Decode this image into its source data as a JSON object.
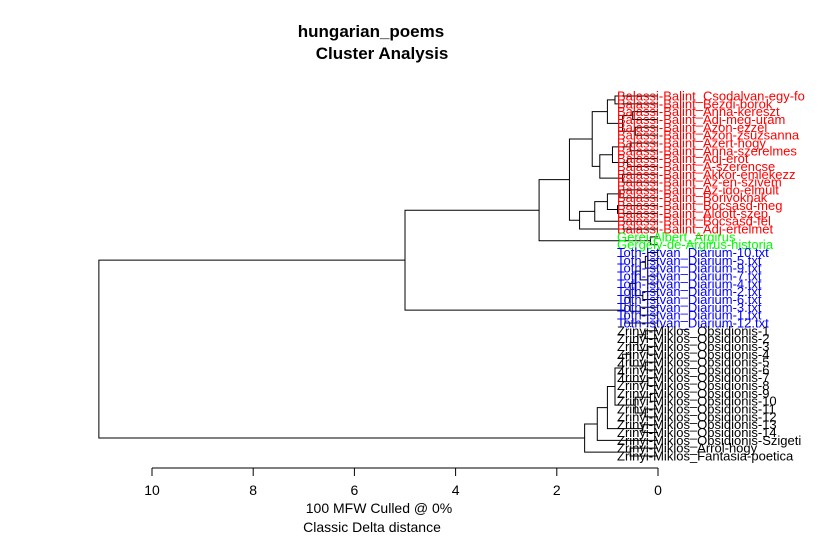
{
  "chart_data": {
    "type": "dendrogram",
    "title": "hungarian_poems",
    "subtitle": "Cluster Analysis",
    "xlabel_line1": "100 MFW  Culled @ 0%",
    "xlabel_line2": "Classic Delta distance",
    "x_ticks": [
      10,
      8,
      6,
      4,
      2,
      0
    ],
    "x_tick_labels": [
      "10",
      "8",
      "6",
      "4",
      "2",
      "0"
    ],
    "xlim": [
      11.05,
      0
    ],
    "group_colors": {
      "Balassi": "#ff0000",
      "Gerei": "#00ff00",
      "Toth": "#0000ff",
      "Zrinyi": "#000000"
    },
    "leaves": [
      {
        "label": "Balassi-Balint_Csodalvan-egy-fo",
        "group": "Balassi"
      },
      {
        "label": "Balassi-Balint_Bezdi-borok",
        "group": "Balassi"
      },
      {
        "label": "Balassi-Balint_Anna-kereszt",
        "group": "Balassi"
      },
      {
        "label": "Balassi-Balint_Adj-meg-uram",
        "group": "Balassi"
      },
      {
        "label": "Balassi-Balint_Azon-ezzel",
        "group": "Balassi"
      },
      {
        "label": "Balassi-Balint_Azon-zsuzsanna",
        "group": "Balassi"
      },
      {
        "label": "Balassi-Balint_Azert-hogy",
        "group": "Balassi"
      },
      {
        "label": "Balassi-Balint_Anna-szerelmes",
        "group": "Balassi"
      },
      {
        "label": "Balassi-Balint_Adj-erot",
        "group": "Balassi"
      },
      {
        "label": "Balassi-Balint_A-szerencse",
        "group": "Balassi"
      },
      {
        "label": "Balassi-Balint_Akkor-emlekezz",
        "group": "Balassi"
      },
      {
        "label": "Balassi-Balint_Az-en-szivem",
        "group": "Balassi"
      },
      {
        "label": "Balassi-Balint_Az-ido-elmult",
        "group": "Balassi"
      },
      {
        "label": "Balassi-Balint_Borivoknak",
        "group": "Balassi"
      },
      {
        "label": "Balassi-Balint_Bocsasd-meg",
        "group": "Balassi"
      },
      {
        "label": "Balassi-Balint_Aldott-szep",
        "group": "Balassi"
      },
      {
        "label": "Balassi-Balint_Bocsasd-fel",
        "group": "Balassi"
      },
      {
        "label": "Balassi-Balint_Adj-ertelmet",
        "group": "Balassi"
      },
      {
        "label": "Gerei-Albert_Argirus",
        "group": "Gerei"
      },
      {
        "label": "Gergely-de-Argirus-historia",
        "group": "Gerei"
      },
      {
        "label": "Toth-Istvan_Diarium-10.txt",
        "group": "Toth"
      },
      {
        "label": "Toth-Istvan_Diarium-5.txt",
        "group": "Toth"
      },
      {
        "label": "Toth-Istvan_Diarium-9.txt",
        "group": "Toth"
      },
      {
        "label": "Toth-Istvan_Diarium-7.txt",
        "group": "Toth"
      },
      {
        "label": "Toth-Istvan_Diarium-4.txt",
        "group": "Toth"
      },
      {
        "label": "Toth-Istvan_Diarium-2.txt",
        "group": "Toth"
      },
      {
        "label": "Toth-Istvan_Diarium-6.txt",
        "group": "Toth"
      },
      {
        "label": "Toth-Istvan_Diarium-3.txt",
        "group": "Toth"
      },
      {
        "label": "Toth-Istvan_Diarium-1.txt",
        "group": "Toth"
      },
      {
        "label": "Toth-Istvan_Diarium-12.txt",
        "group": "Toth"
      },
      {
        "label": "Zrinyi-Miklos_Obsidionis-1",
        "group": "Zrinyi"
      },
      {
        "label": "Zrinyi-Miklos_Obsidionis-2",
        "group": "Zrinyi"
      },
      {
        "label": "Zrinyi-Miklos_Obsidionis-3",
        "group": "Zrinyi"
      },
      {
        "label": "Zrinyi-Miklos_Obsidionis-4",
        "group": "Zrinyi"
      },
      {
        "label": "Zrinyi-Miklos_Obsidionis-5",
        "group": "Zrinyi"
      },
      {
        "label": "Zrinyi-Miklos_Obsidionis-6",
        "group": "Zrinyi"
      },
      {
        "label": "Zrinyi-Miklos_Obsidionis-7",
        "group": "Zrinyi"
      },
      {
        "label": "Zrinyi-Miklos_Obsidionis-8",
        "group": "Zrinyi"
      },
      {
        "label": "Zrinyi-Miklos_Obsidionis-9",
        "group": "Zrinyi"
      },
      {
        "label": "Zrinyi-Miklos_Obsidionis-10",
        "group": "Zrinyi"
      },
      {
        "label": "Zrinyi-Miklos_Obsidionis-11",
        "group": "Zrinyi"
      },
      {
        "label": "Zrinyi-Miklos_Obsidionis-12",
        "group": "Zrinyi"
      },
      {
        "label": "Zrinyi-Miklos_Obsidionis-13",
        "group": "Zrinyi"
      },
      {
        "label": "Zrinyi-Miklos_Obsidionis-14",
        "group": "Zrinyi"
      },
      {
        "label": "Zrinyi-Miklos_Obsidionis-Szigeti",
        "group": "Zrinyi"
      },
      {
        "label": "Zrinyi-Miklos_Arrol-hogy",
        "group": "Zrinyi"
      },
      {
        "label": "Zrinyi-Miklos_Fantasia-poetica",
        "group": "Zrinyi"
      }
    ],
    "merges": [
      {
        "a": {
          "leaf": 0
        },
        "b": {
          "leaf": 1
        },
        "height": 0.85
      },
      {
        "a": {
          "leaf": 2
        },
        "b": {
          "leaf": 3
        },
        "height": 0.5
      },
      {
        "a": {
          "leaf": 4
        },
        "b": {
          "leaf": 5
        },
        "height": 0.45
      },
      {
        "a": {
          "node": 1
        },
        "b": {
          "node": 2
        },
        "height": 0.7
      },
      {
        "a": {
          "node": 0
        },
        "b": {
          "node": 3
        },
        "height": 1.0
      },
      {
        "a": {
          "leaf": 6
        },
        "b": {
          "leaf": 7
        },
        "height": 0.55
      },
      {
        "a": {
          "leaf": 8
        },
        "b": {
          "leaf": 9
        },
        "height": 0.6
      },
      {
        "a": {
          "node": 5
        },
        "b": {
          "node": 6
        },
        "height": 0.9
      },
      {
        "a": {
          "leaf": 10
        },
        "b": {
          "leaf": 11
        },
        "height": 0.7
      },
      {
        "a": {
          "node": 7
        },
        "b": {
          "node": 8
        },
        "height": 1.15
      },
      {
        "a": {
          "node": 4
        },
        "b": {
          "node": 9
        },
        "height": 1.3
      },
      {
        "a": {
          "leaf": 12
        },
        "b": {
          "leaf": 13
        },
        "height": 0.75
      },
      {
        "a": {
          "leaf": 14
        },
        "b": {
          "leaf": 15
        },
        "height": 0.8
      },
      {
        "a": {
          "node": 11
        },
        "b": {
          "node": 12
        },
        "height": 1.0
      },
      {
        "a": {
          "node": 13
        },
        "b": {
          "leaf": 16
        },
        "height": 1.25
      },
      {
        "a": {
          "node": 14
        },
        "b": {
          "leaf": 17
        },
        "height": 1.55
      },
      {
        "a": {
          "node": 10
        },
        "b": {
          "node": 15
        },
        "height": 1.75
      },
      {
        "a": {
          "leaf": 18
        },
        "b": {
          "leaf": 19
        },
        "height": 0.15
      },
      {
        "a": {
          "node": 16
        },
        "b": {
          "node": 17
        },
        "height": 2.35
      },
      {
        "a": {
          "leaf": 20
        },
        "b": {
          "leaf": 21
        },
        "height": 0.2
      },
      {
        "a": {
          "node": 19
        },
        "b": {
          "leaf": 22
        },
        "height": 0.25
      },
      {
        "a": {
          "leaf": 23
        },
        "b": {
          "leaf": 24
        },
        "height": 0.2
      },
      {
        "a": {
          "node": 20
        },
        "b": {
          "node": 21
        },
        "height": 0.35
      },
      {
        "a": {
          "leaf": 25
        },
        "b": {
          "leaf": 26
        },
        "height": 0.3
      },
      {
        "a": {
          "node": 22
        },
        "b": {
          "node": 23
        },
        "height": 0.45
      },
      {
        "a": {
          "leaf": 27
        },
        "b": {
          "leaf": 28
        },
        "height": 0.35
      },
      {
        "a": {
          "node": 24
        },
        "b": {
          "node": 25
        },
        "height": 0.55
      },
      {
        "a": {
          "node": 26
        },
        "b": {
          "leaf": 29
        },
        "height": 0.65
      },
      {
        "a": {
          "node": 18
        },
        "b": {
          "node": 27
        },
        "height": 5.0
      },
      {
        "a": {
          "leaf": 30
        },
        "b": {
          "leaf": 31
        },
        "height": 0.25
      },
      {
        "a": {
          "leaf": 32
        },
        "b": {
          "leaf": 33
        },
        "height": 0.2
      },
      {
        "a": {
          "node": 29
        },
        "b": {
          "node": 30
        },
        "height": 0.4
      },
      {
        "a": {
          "leaf": 34
        },
        "b": {
          "leaf": 35
        },
        "height": 0.25
      },
      {
        "a": {
          "node": 31
        },
        "b": {
          "node": 32
        },
        "height": 0.55
      },
      {
        "a": {
          "leaf": 36
        },
        "b": {
          "leaf": 37
        },
        "height": 0.2
      },
      {
        "a": {
          "node": 33
        },
        "b": {
          "node": 34
        },
        "height": 0.7
      },
      {
        "a": {
          "leaf": 38
        },
        "b": {
          "leaf": 39
        },
        "height": 0.15
      },
      {
        "a": {
          "leaf": 40
        },
        "b": {
          "leaf": 41
        },
        "height": 0.25
      },
      {
        "a": {
          "node": 36
        },
        "b": {
          "node": 37
        },
        "height": 0.45
      },
      {
        "a": {
          "node": 35
        },
        "b": {
          "node": 38
        },
        "height": 0.85
      },
      {
        "a": {
          "leaf": 42
        },
        "b": {
          "leaf": 43
        },
        "height": 0.3
      },
      {
        "a": {
          "node": 39
        },
        "b": {
          "node": 40
        },
        "height": 1.0
      },
      {
        "a": {
          "node": 41
        },
        "b": {
          "leaf": 44
        },
        "height": 1.2
      },
      {
        "a": {
          "leaf": 45
        },
        "b": {
          "leaf": 46
        },
        "height": 0.55
      },
      {
        "a": {
          "node": 42
        },
        "b": {
          "node": 43
        },
        "height": 1.45
      },
      {
        "a": {
          "node": 28
        },
        "b": {
          "node": 44
        },
        "height": 11.05
      }
    ]
  }
}
